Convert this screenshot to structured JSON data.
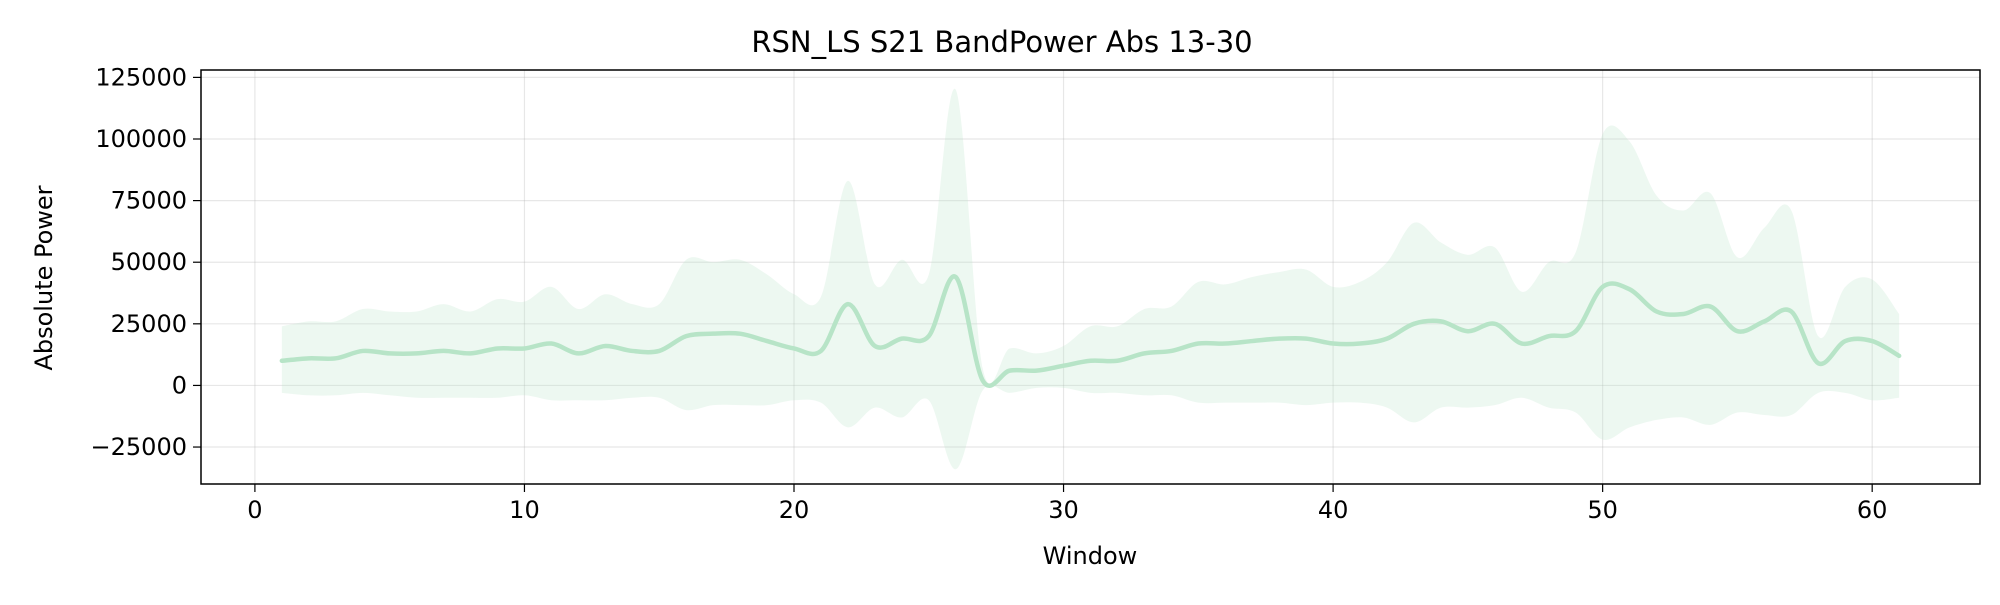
{
  "chart_data": {
    "type": "line",
    "title": "RSN_LS S21 BandPower Abs 13-30",
    "xlabel": "Window",
    "ylabel": "Absolute Power",
    "xlim": [
      -2,
      64
    ],
    "ylim": [
      -40000,
      128000
    ],
    "x_ticks": [
      0,
      10,
      20,
      30,
      40,
      50,
      60
    ],
    "y_ticks": [
      -25000,
      0,
      25000,
      50000,
      75000,
      100000,
      125000
    ],
    "x_tick_labels": [
      "0",
      "10",
      "20",
      "30",
      "40",
      "50",
      "60"
    ],
    "y_tick_labels": [
      "−25000",
      "0",
      "25000",
      "50000",
      "75000",
      "100000",
      "125000"
    ],
    "grid": true,
    "line_color": "#b7e4c7",
    "band_color": "#b7e4c7",
    "series": [
      {
        "x": [
          1,
          2,
          3,
          4,
          5,
          6,
          7,
          8,
          9,
          10,
          11,
          12,
          13,
          14,
          15,
          16,
          17,
          18,
          19,
          20,
          21,
          22,
          23,
          24,
          25,
          26,
          27,
          28,
          29,
          30,
          31,
          32,
          33,
          34,
          35,
          36,
          37,
          38,
          39,
          40,
          41,
          42,
          43,
          44,
          45,
          46,
          47,
          48,
          49,
          50,
          51,
          52,
          53,
          54,
          55,
          56,
          57,
          58,
          59,
          60,
          61
        ],
        "mean": [
          10000,
          11000,
          11000,
          14000,
          13000,
          13000,
          14000,
          13000,
          15000,
          15000,
          17000,
          13000,
          16000,
          14000,
          14000,
          20000,
          21000,
          21000,
          18000,
          15000,
          14000,
          33000,
          16000,
          19000,
          20000,
          44000,
          2000,
          6000,
          6000,
          8000,
          10000,
          10000,
          13000,
          14000,
          17000,
          17000,
          18000,
          19000,
          19000,
          17000,
          17000,
          19000,
          25000,
          26000,
          22000,
          25000,
          17000,
          20000,
          22000,
          40000,
          39000,
          30000,
          29000,
          32000,
          22000,
          26000,
          30000,
          9000,
          18000,
          18000,
          12000
        ],
        "upper": [
          24000,
          26000,
          26000,
          31000,
          30000,
          30000,
          33000,
          30000,
          35000,
          34000,
          40000,
          31000,
          37000,
          33000,
          33000,
          51000,
          50000,
          51000,
          45000,
          37000,
          36000,
          83000,
          41000,
          51000,
          45000,
          120000,
          7000,
          15000,
          13000,
          16000,
          24000,
          24000,
          31000,
          32000,
          42000,
          41000,
          44000,
          46000,
          47000,
          40000,
          42000,
          50000,
          66000,
          58000,
          53000,
          56000,
          38000,
          50000,
          54000,
          102000,
          99000,
          77000,
          71000,
          78000,
          52000,
          64000,
          71000,
          20000,
          40000,
          43000,
          29000
        ],
        "lower": [
          -3000,
          -4000,
          -4000,
          -3000,
          -4000,
          -5000,
          -5000,
          -5000,
          -5000,
          -4000,
          -6000,
          -6000,
          -6000,
          -5000,
          -5000,
          -10000,
          -8000,
          -8000,
          -8000,
          -6000,
          -7000,
          -17000,
          -9000,
          -13000,
          -6000,
          -34000,
          -2000,
          -3000,
          -1000,
          -1000,
          -3000,
          -3000,
          -4000,
          -4000,
          -7000,
          -7000,
          -7000,
          -7000,
          -8000,
          -7000,
          -7000,
          -9000,
          -15000,
          -9000,
          -9000,
          -8000,
          -5000,
          -9000,
          -11000,
          -22000,
          -17000,
          -14000,
          -13000,
          -16000,
          -11000,
          -12000,
          -12000,
          -3000,
          -3000,
          -6000,
          -5000
        ]
      }
    ]
  }
}
